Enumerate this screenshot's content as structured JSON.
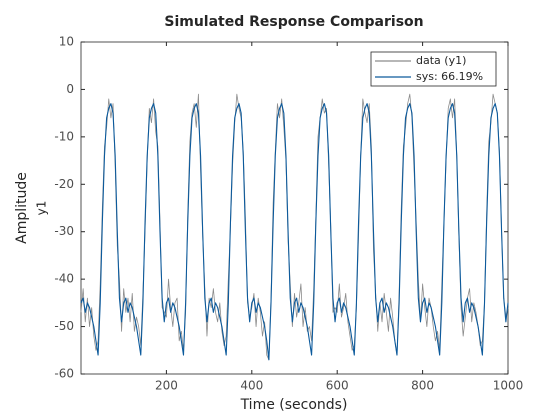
{
  "chart_data": {
    "type": "line",
    "title": "Simulated Response Comparison",
    "xlabel": "Time (seconds)",
    "ylabel": "Amplitude",
    "y_channel": "y1",
    "legend": "northeast",
    "xlim": [
      0,
      1000
    ],
    "xticks": [
      200,
      400,
      600,
      800,
      1000
    ],
    "ylim": [
      -60,
      10
    ],
    "yticks": [
      10,
      0,
      -10,
      -20,
      -30,
      -40,
      -50,
      -60
    ],
    "x": [
      0,
      5,
      10,
      15,
      20,
      25,
      30,
      35,
      40,
      45,
      50,
      55,
      60,
      65,
      70,
      75,
      80,
      85,
      90,
      95,
      100,
      105,
      110,
      115,
      120,
      125,
      130,
      135,
      140,
      145,
      150,
      155,
      160,
      165,
      170,
      175,
      180,
      185,
      190,
      195,
      200,
      205,
      210,
      215,
      220,
      225,
      230,
      235,
      240,
      245,
      250,
      255,
      260,
      265,
      270,
      275,
      280,
      285,
      290,
      295,
      300,
      305,
      310,
      315,
      320,
      325,
      330,
      335,
      340,
      345,
      350,
      355,
      360,
      365,
      370,
      375,
      380,
      385,
      390,
      395,
      400,
      405,
      410,
      415,
      420,
      425,
      430,
      435,
      440,
      445,
      450,
      455,
      460,
      465,
      470,
      475,
      480,
      485,
      490,
      495,
      500,
      505,
      510,
      515,
      520,
      525,
      530,
      535,
      540,
      545,
      550,
      555,
      560,
      565,
      570,
      575,
      580,
      585,
      590,
      595,
      600,
      605,
      610,
      615,
      620,
      625,
      630,
      635,
      640,
      645,
      650,
      655,
      660,
      665,
      670,
      675,
      680,
      685,
      690,
      695,
      700,
      705,
      710,
      715,
      720,
      725,
      730,
      735,
      740,
      745,
      750,
      755,
      760,
      765,
      770,
      775,
      780,
      785,
      790,
      795,
      800,
      805,
      810,
      815,
      820,
      825,
      830,
      835,
      840,
      845,
      850,
      855,
      860,
      865,
      870,
      875,
      880,
      885,
      890,
      895,
      900,
      905,
      910,
      915,
      920,
      925,
      930,
      935,
      940,
      945,
      950,
      955,
      960,
      965,
      970,
      975,
      980,
      985,
      990,
      995,
      1000
    ],
    "series": [
      {
        "name": "data (y1)",
        "color": "#8c8c8c",
        "values": [
          -47,
          -42,
          -49,
          -44,
          -50,
          -46,
          -52,
          -55,
          -53,
          -41,
          -25,
          -12,
          -8,
          -2,
          -6,
          -3,
          -16,
          -33,
          -40,
          -51,
          -42,
          -47,
          -44,
          -49,
          -43,
          -51,
          -48,
          -50,
          -54,
          -43,
          -30,
          -15,
          -4,
          -7,
          -2,
          -9,
          -12,
          -28,
          -46,
          -47,
          -48,
          -40,
          -46,
          -50,
          -45,
          -44,
          -53,
          -51,
          -55,
          -47,
          -26,
          -11,
          -5,
          -3,
          -8,
          -1,
          -17,
          -31,
          -42,
          -52,
          -44,
          -46,
          -42,
          -47,
          -49,
          -45,
          -51,
          -54,
          -52,
          -40,
          -29,
          -16,
          -7,
          -1,
          -4,
          -6,
          -13,
          -27,
          -45,
          -48,
          -46,
          -43,
          -50,
          -44,
          -47,
          -52,
          -49,
          -56,
          -57,
          -44,
          -24,
          -13,
          -3,
          -6,
          -2,
          -8,
          -15,
          -32,
          -41,
          -50,
          -43,
          -48,
          -45,
          -41,
          -50,
          -46,
          -51,
          -50,
          -53,
          -42,
          -27,
          -10,
          -6,
          -2,
          -5,
          -4,
          -16,
          -29,
          -47,
          -46,
          -47,
          -41,
          -48,
          -46,
          -43,
          -49,
          -52,
          -55,
          -54,
          -46,
          -31,
          -14,
          -2,
          -5,
          -7,
          -3,
          -12,
          -34,
          -43,
          -51,
          -45,
          -49,
          -43,
          -47,
          -51,
          -44,
          -48,
          -53,
          -56,
          -43,
          -25,
          -12,
          -8,
          -3,
          -1,
          -6,
          -17,
          -28,
          -40,
          -49,
          -41,
          -46,
          -50,
          -44,
          -46,
          -50,
          -53,
          -51,
          -55,
          -41,
          -28,
          -15,
          -4,
          -2,
          -6,
          -2,
          -14,
          -31,
          -46,
          -52,
          -48,
          -44,
          -42,
          -49,
          -45,
          -47,
          -50,
          -54,
          -53,
          -45,
          -26,
          -11,
          -7,
          -1,
          -3,
          -5,
          -13,
          -30,
          -44,
          -48,
          -46
        ]
      },
      {
        "name": "sys: 66.19%",
        "color": "#0c5a9c",
        "values": [
          -45,
          -44,
          -47,
          -45,
          -46,
          -48,
          -50,
          -53,
          -56,
          -45,
          -28,
          -14,
          -6,
          -4,
          -3,
          -5,
          -14,
          -30,
          -44,
          -49,
          -45,
          -44,
          -47,
          -45,
          -46,
          -48,
          -50,
          -53,
          -56,
          -45,
          -28,
          -14,
          -6,
          -4,
          -3,
          -5,
          -14,
          -30,
          -44,
          -49,
          -45,
          -44,
          -47,
          -45,
          -46,
          -48,
          -50,
          -53,
          -56,
          -45,
          -28,
          -14,
          -6,
          -4,
          -3,
          -5,
          -14,
          -30,
          -44,
          -49,
          -45,
          -44,
          -47,
          -45,
          -46,
          -48,
          -50,
          -53,
          -56,
          -45,
          -28,
          -14,
          -6,
          -4,
          -3,
          -5,
          -14,
          -30,
          -44,
          -49,
          -45,
          -44,
          -47,
          -45,
          -46,
          -48,
          -50,
          -53,
          -57,
          -45,
          -28,
          -14,
          -6,
          -4,
          -3,
          -5,
          -14,
          -30,
          -44,
          -49,
          -45,
          -44,
          -47,
          -45,
          -46,
          -48,
          -50,
          -53,
          -56,
          -45,
          -28,
          -14,
          -6,
          -4,
          -3,
          -5,
          -14,
          -30,
          -44,
          -49,
          -45,
          -44,
          -47,
          -45,
          -46,
          -48,
          -50,
          -53,
          -56,
          -45,
          -28,
          -14,
          -6,
          -4,
          -3,
          -5,
          -14,
          -30,
          -44,
          -49,
          -45,
          -44,
          -47,
          -45,
          -46,
          -48,
          -50,
          -53,
          -56,
          -45,
          -28,
          -14,
          -6,
          -4,
          -3,
          -5,
          -14,
          -30,
          -44,
          -49,
          -45,
          -44,
          -47,
          -45,
          -46,
          -48,
          -50,
          -53,
          -56,
          -45,
          -28,
          -14,
          -6,
          -4,
          -3,
          -5,
          -14,
          -30,
          -44,
          -49,
          -45,
          -44,
          -47,
          -45,
          -46,
          -48,
          -50,
          -53,
          -56,
          -45,
          -28,
          -14,
          -6,
          -4,
          -3,
          -5,
          -14,
          -30,
          -44,
          -49,
          -45
        ]
      }
    ]
  }
}
